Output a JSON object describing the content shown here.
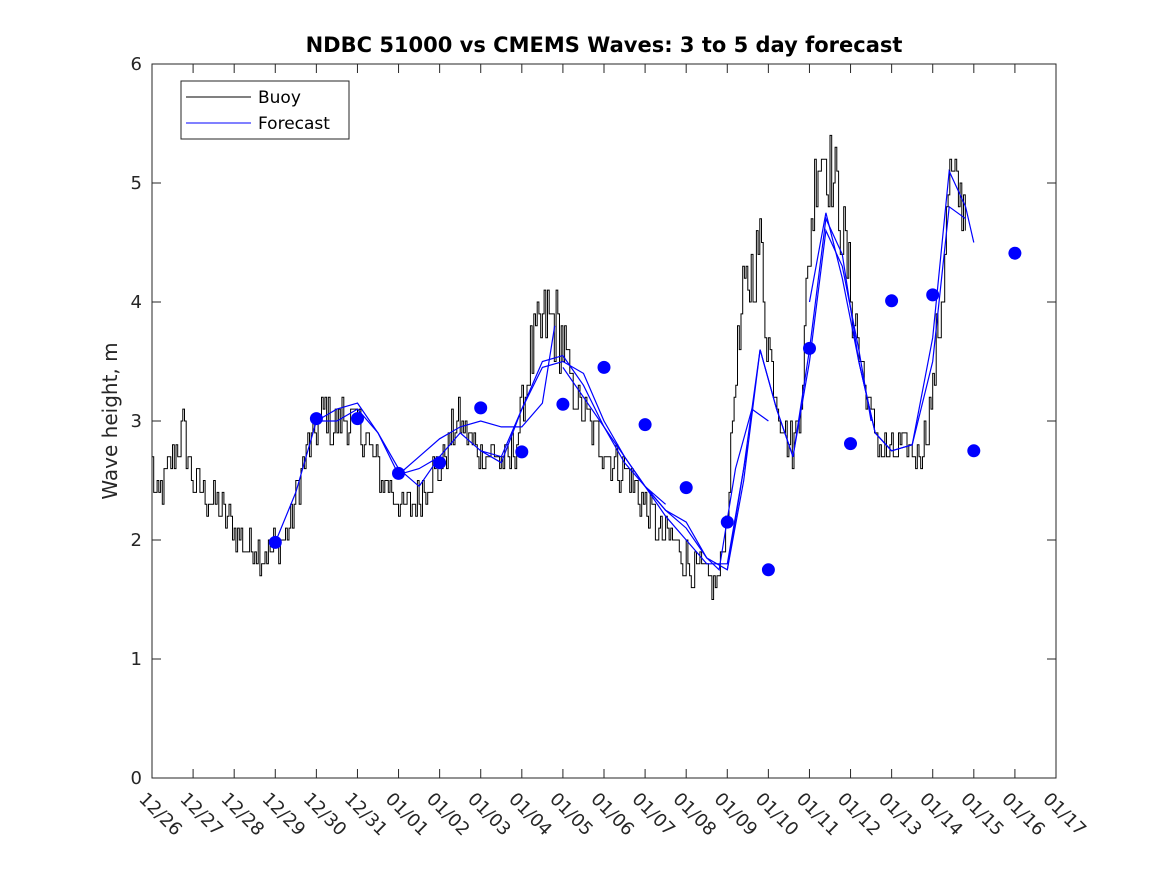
{
  "chart_data": {
    "type": "line",
    "title": "NDBC 51000 vs CMEMS Waves: 3 to 5 day forecast",
    "xlabel": "",
    "ylabel": "Wave height, m",
    "ylim": [
      0,
      6
    ],
    "yticks": [
      0,
      1,
      2,
      3,
      4,
      5,
      6
    ],
    "x_ticklabels": [
      "12/26",
      "12/27",
      "12/28",
      "12/29",
      "12/30",
      "12/31",
      "01/01",
      "01/02",
      "01/03",
      "01/04",
      "01/05",
      "01/06",
      "01/07",
      "01/08",
      "01/09",
      "01/10",
      "01/11",
      "01/12",
      "01/13",
      "01/14",
      "01/15",
      "01/16",
      "01/17"
    ],
    "legend": {
      "position": "top-left",
      "entries": [
        "Buoy",
        "Forecast"
      ]
    },
    "colors": {
      "buoy": "#000000",
      "forecast": "#0000ff"
    },
    "buoy_anchor_points": [
      [
        0.0,
        2.6
      ],
      [
        0.1,
        2.3
      ],
      [
        0.3,
        2.5
      ],
      [
        0.5,
        2.7
      ],
      [
        0.7,
        2.85
      ],
      [
        0.75,
        3.0
      ],
      [
        0.9,
        2.6
      ],
      [
        1.0,
        2.5
      ],
      [
        1.2,
        2.4
      ],
      [
        1.4,
        2.35
      ],
      [
        1.6,
        2.3
      ],
      [
        1.8,
        2.2
      ],
      [
        2.0,
        2.1
      ],
      [
        2.1,
        2.0
      ],
      [
        2.3,
        1.95
      ],
      [
        2.5,
        1.95
      ],
      [
        2.7,
        1.9
      ],
      [
        2.9,
        1.9
      ],
      [
        3.0,
        1.95
      ],
      [
        3.2,
        2.0
      ],
      [
        3.4,
        2.2
      ],
      [
        3.6,
        2.5
      ],
      [
        3.8,
        2.8
      ],
      [
        4.0,
        2.9
      ],
      [
        4.2,
        3.1
      ],
      [
        4.4,
        2.9
      ],
      [
        4.6,
        3.05
      ],
      [
        4.8,
        3.0
      ],
      [
        5.0,
        2.95
      ],
      [
        5.2,
        2.85
      ],
      [
        5.4,
        2.7
      ],
      [
        5.6,
        2.5
      ],
      [
        5.8,
        2.45
      ],
      [
        6.0,
        2.3
      ],
      [
        6.2,
        2.25
      ],
      [
        6.4,
        2.35
      ],
      [
        6.6,
        2.45
      ],
      [
        6.8,
        2.55
      ],
      [
        7.0,
        2.6
      ],
      [
        7.2,
        2.8
      ],
      [
        7.4,
        3.0
      ],
      [
        7.6,
        2.95
      ],
      [
        7.8,
        2.8
      ],
      [
        8.0,
        2.75
      ],
      [
        8.2,
        2.75
      ],
      [
        8.4,
        2.7
      ],
      [
        8.6,
        2.6
      ],
      [
        8.8,
        2.75
      ],
      [
        9.0,
        3.1
      ],
      [
        9.2,
        3.5
      ],
      [
        9.4,
        3.7
      ],
      [
        9.6,
        3.9
      ],
      [
        9.8,
        3.8
      ],
      [
        10.0,
        3.6
      ],
      [
        10.2,
        3.3
      ],
      [
        10.4,
        3.1
      ],
      [
        10.6,
        3.0
      ],
      [
        10.8,
        2.9
      ],
      [
        11.0,
        2.75
      ],
      [
        11.2,
        2.65
      ],
      [
        11.4,
        2.6
      ],
      [
        11.6,
        2.55
      ],
      [
        11.8,
        2.4
      ],
      [
        12.0,
        2.3
      ],
      [
        12.2,
        2.15
      ],
      [
        12.4,
        2.05
      ],
      [
        12.6,
        2.0
      ],
      [
        12.8,
        1.95
      ],
      [
        13.0,
        1.85
      ],
      [
        13.2,
        1.75
      ],
      [
        13.4,
        1.7
      ],
      [
        13.6,
        1.6
      ],
      [
        13.8,
        1.7
      ],
      [
        14.0,
        2.3
      ],
      [
        14.2,
        3.4
      ],
      [
        14.4,
        4.0
      ],
      [
        14.6,
        4.3
      ],
      [
        14.8,
        4.5
      ],
      [
        15.0,
        3.6
      ],
      [
        15.2,
        3.2
      ],
      [
        15.4,
        2.9
      ],
      [
        15.6,
        2.8
      ],
      [
        15.8,
        3.2
      ],
      [
        16.0,
        4.5
      ],
      [
        16.2,
        5.3
      ],
      [
        16.4,
        5.2
      ],
      [
        16.6,
        5.0
      ],
      [
        16.8,
        4.6
      ],
      [
        17.0,
        4.1
      ],
      [
        17.2,
        3.6
      ],
      [
        17.4,
        3.2
      ],
      [
        17.6,
        2.9
      ],
      [
        17.8,
        2.75
      ],
      [
        18.0,
        2.7
      ],
      [
        18.2,
        2.75
      ],
      [
        18.4,
        2.8
      ],
      [
        18.6,
        2.7
      ],
      [
        18.8,
        2.85
      ],
      [
        19.0,
        3.3
      ],
      [
        19.2,
        4.0
      ],
      [
        19.4,
        5.0
      ],
      [
        19.6,
        4.9
      ],
      [
        19.8,
        4.8
      ]
    ],
    "forecast_runs": [
      {
        "points": [
          [
            3.0,
            1.98
          ],
          [
            3.5,
            2.4
          ],
          [
            4.0,
            3.0
          ],
          [
            4.5,
            3.0
          ],
          [
            5.0,
            3.1
          ],
          [
            5.5,
            2.9
          ],
          [
            6.0,
            2.6
          ],
          [
            6.5,
            2.45
          ],
          [
            7.0,
            2.7
          ]
        ]
      },
      {
        "points": [
          [
            4.0,
            3.0
          ],
          [
            4.5,
            3.1
          ],
          [
            5.0,
            3.15
          ],
          [
            5.5,
            2.9
          ],
          [
            6.0,
            2.55
          ],
          [
            6.5,
            2.7
          ],
          [
            7.0,
            2.85
          ],
          [
            7.5,
            2.95
          ],
          [
            8.0,
            3.0
          ],
          [
            8.5,
            2.95
          ],
          [
            9.0,
            2.95
          ],
          [
            9.5,
            3.15
          ],
          [
            9.8,
            3.8
          ]
        ]
      },
      {
        "points": [
          [
            6.0,
            2.55
          ],
          [
            6.5,
            2.6
          ],
          [
            7.0,
            2.7
          ],
          [
            7.5,
            2.9
          ],
          [
            8.0,
            2.75
          ],
          [
            8.5,
            2.65
          ],
          [
            9.0,
            3.1
          ],
          [
            9.5,
            3.5
          ],
          [
            10.0,
            3.55
          ],
          [
            10.5,
            3.3
          ],
          [
            11.0,
            2.95
          ],
          [
            11.5,
            2.65
          ],
          [
            12.0,
            2.45
          ],
          [
            12.5,
            2.3
          ]
        ]
      },
      {
        "points": [
          [
            8.0,
            2.75
          ],
          [
            8.5,
            2.7
          ],
          [
            9.0,
            3.1
          ],
          [
            9.5,
            3.45
          ],
          [
            10.0,
            3.5
          ],
          [
            10.5,
            3.4
          ],
          [
            11.0,
            3.0
          ],
          [
            11.5,
            2.7
          ],
          [
            12.0,
            2.45
          ],
          [
            12.5,
            2.2
          ],
          [
            13.0,
            2.0
          ],
          [
            13.5,
            1.8
          ],
          [
            14.0,
            1.8
          ],
          [
            14.5,
            2.8
          ]
        ]
      },
      {
        "points": [
          [
            10.0,
            3.45
          ],
          [
            10.5,
            3.2
          ],
          [
            11.0,
            2.95
          ],
          [
            11.5,
            2.7
          ],
          [
            12.0,
            2.45
          ],
          [
            12.5,
            2.25
          ],
          [
            13.0,
            2.1
          ],
          [
            13.5,
            1.85
          ],
          [
            13.8,
            1.75
          ],
          [
            14.2,
            2.6
          ],
          [
            14.6,
            3.1
          ],
          [
            15.0,
            3.0
          ]
        ]
      },
      {
        "points": [
          [
            12.0,
            2.45
          ],
          [
            12.5,
            2.25
          ],
          [
            13.0,
            2.15
          ],
          [
            13.5,
            1.85
          ],
          [
            14.0,
            1.75
          ],
          [
            14.4,
            2.5
          ],
          [
            14.8,
            3.6
          ],
          [
            15.2,
            3.1
          ],
          [
            15.6,
            2.7
          ],
          [
            16.0,
            3.5
          ],
          [
            16.4,
            4.6
          ],
          [
            16.8,
            4.3
          ],
          [
            17.2,
            3.6
          ],
          [
            17.5,
            3.0
          ]
        ]
      },
      {
        "points": [
          [
            14.0,
            1.75
          ],
          [
            14.4,
            2.6
          ],
          [
            14.8,
            3.6
          ],
          [
            15.2,
            3.1
          ],
          [
            15.6,
            2.7
          ],
          [
            16.0,
            3.6
          ],
          [
            16.4,
            4.7
          ],
          [
            16.8,
            4.4
          ],
          [
            17.2,
            3.5
          ],
          [
            17.6,
            2.9
          ],
          [
            18.0,
            2.75
          ],
          [
            18.5,
            2.8
          ],
          [
            19.0,
            3.5
          ],
          [
            19.4,
            4.8
          ],
          [
            19.8,
            4.7
          ]
        ]
      },
      {
        "points": [
          [
            16.0,
            4.0
          ],
          [
            16.4,
            4.75
          ],
          [
            16.8,
            4.2
          ],
          [
            17.2,
            3.5
          ],
          [
            17.6,
            2.9
          ],
          [
            18.0,
            2.75
          ],
          [
            18.5,
            2.8
          ],
          [
            19.0,
            3.7
          ],
          [
            19.4,
            5.1
          ],
          [
            19.8,
            4.8
          ],
          [
            20.0,
            4.5
          ]
        ]
      }
    ],
    "forecast_markers": [
      [
        3.0,
        1.98
      ],
      [
        4.0,
        3.02
      ],
      [
        5.0,
        3.02
      ],
      [
        6.0,
        2.56
      ],
      [
        7.0,
        2.65
      ],
      [
        8.0,
        3.11
      ],
      [
        9.0,
        2.74
      ],
      [
        10.0,
        3.14
      ],
      [
        11.0,
        3.45
      ],
      [
        12.0,
        2.97
      ],
      [
        13.0,
        2.44
      ],
      [
        14.0,
        2.15
      ],
      [
        15.0,
        1.75
      ],
      [
        16.0,
        3.61
      ],
      [
        17.0,
        2.81
      ],
      [
        18.0,
        4.01
      ],
      [
        19.0,
        4.06
      ],
      [
        20.0,
        2.75
      ],
      [
        21.0,
        4.41
      ]
    ]
  }
}
